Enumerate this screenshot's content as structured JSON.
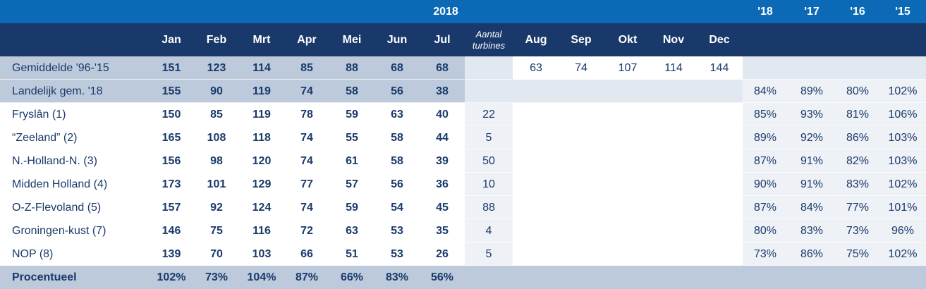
{
  "header": {
    "year": "2018",
    "months": [
      "Jan",
      "Feb",
      "Mrt",
      "Apr",
      "Mei",
      "Jun",
      "Jul",
      "Aug",
      "Sep",
      "Okt",
      "Nov",
      "Dec"
    ],
    "turbines_label": "Aantal turbines",
    "years": [
      "'18",
      "'17",
      "'16",
      "'15"
    ]
  },
  "rows": [
    {
      "label": "Gemiddelde '96-'15",
      "months": [
        151,
        123,
        114,
        85,
        88,
        68,
        68,
        63,
        74,
        107,
        114,
        144
      ]
    },
    {
      "label": "Landelijk gem. '18",
      "months": [
        155,
        90,
        119,
        74,
        58,
        56,
        38
      ],
      "pct": [
        "84%",
        "89%",
        "80%",
        "102%"
      ]
    },
    {
      "label": "Fryslân (1)",
      "months": [
        150,
        85,
        119,
        78,
        59,
        63,
        40
      ],
      "turbines": 22,
      "pct": [
        "85%",
        "93%",
        "81%",
        "106%"
      ]
    },
    {
      "label": "“Zeeland” (2)",
      "months": [
        165,
        108,
        118,
        74,
        55,
        58,
        44
      ],
      "turbines": 5,
      "pct": [
        "89%",
        "92%",
        "86%",
        "103%"
      ]
    },
    {
      "label": "N.-Holland-N. (3)",
      "months": [
        156,
        98,
        120,
        74,
        61,
        58,
        39
      ],
      "turbines": 50,
      "pct": [
        "87%",
        "91%",
        "82%",
        "103%"
      ]
    },
    {
      "label": "Midden Holland (4)",
      "months": [
        173,
        101,
        129,
        77,
        57,
        56,
        36
      ],
      "turbines": 10,
      "pct": [
        "90%",
        "91%",
        "83%",
        "102%"
      ]
    },
    {
      "label": "O-Z-Flevoland (5)",
      "months": [
        157,
        92,
        124,
        74,
        59,
        54,
        45
      ],
      "turbines": 88,
      "pct": [
        "87%",
        "84%",
        "77%",
        "101%"
      ]
    },
    {
      "label": "Groningen-kust (7)",
      "months": [
        146,
        75,
        116,
        72,
        63,
        53,
        35
      ],
      "turbines": 4,
      "pct": [
        "80%",
        "83%",
        "73%",
        "96%"
      ]
    },
    {
      "label": "NOP (8)",
      "months": [
        139,
        70,
        103,
        66,
        51,
        53,
        26
      ],
      "turbines": 5,
      "pct": [
        "73%",
        "86%",
        "75%",
        "102%"
      ]
    }
  ],
  "footer": {
    "label": "Procentueel",
    "months": [
      "102%",
      "73%",
      "104%",
      "87%",
      "66%",
      "83%",
      "56%"
    ]
  }
}
